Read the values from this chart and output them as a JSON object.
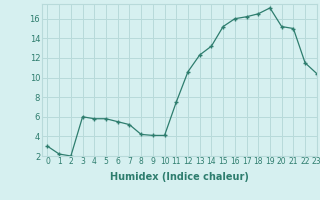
{
  "x": [
    0,
    1,
    2,
    3,
    4,
    5,
    6,
    7,
    8,
    9,
    10,
    11,
    12,
    13,
    14,
    15,
    16,
    17,
    18,
    19,
    20,
    21,
    22,
    23
  ],
  "y": [
    3.0,
    2.2,
    2.0,
    6.0,
    5.8,
    5.8,
    5.5,
    5.2,
    4.2,
    4.1,
    4.1,
    7.5,
    10.6,
    12.3,
    13.2,
    15.2,
    16.0,
    16.2,
    16.5,
    17.1,
    15.2,
    15.0,
    11.5,
    10.4
  ],
  "xlabel": "Humidex (Indice chaleur)",
  "line_color": "#2e7d6e",
  "marker": "+",
  "bg_color": "#d6f0f0",
  "grid_color": "#b8dada",
  "ylim": [
    2,
    17.5
  ],
  "xlim": [
    -0.5,
    23
  ],
  "yticks": [
    2,
    4,
    6,
    8,
    10,
    12,
    14,
    16
  ],
  "xticks": [
    0,
    1,
    2,
    3,
    4,
    5,
    6,
    7,
    8,
    9,
    10,
    11,
    12,
    13,
    14,
    15,
    16,
    17,
    18,
    19,
    20,
    21,
    22,
    23
  ],
  "tick_fontsize": 5.5,
  "xlabel_fontsize": 7
}
